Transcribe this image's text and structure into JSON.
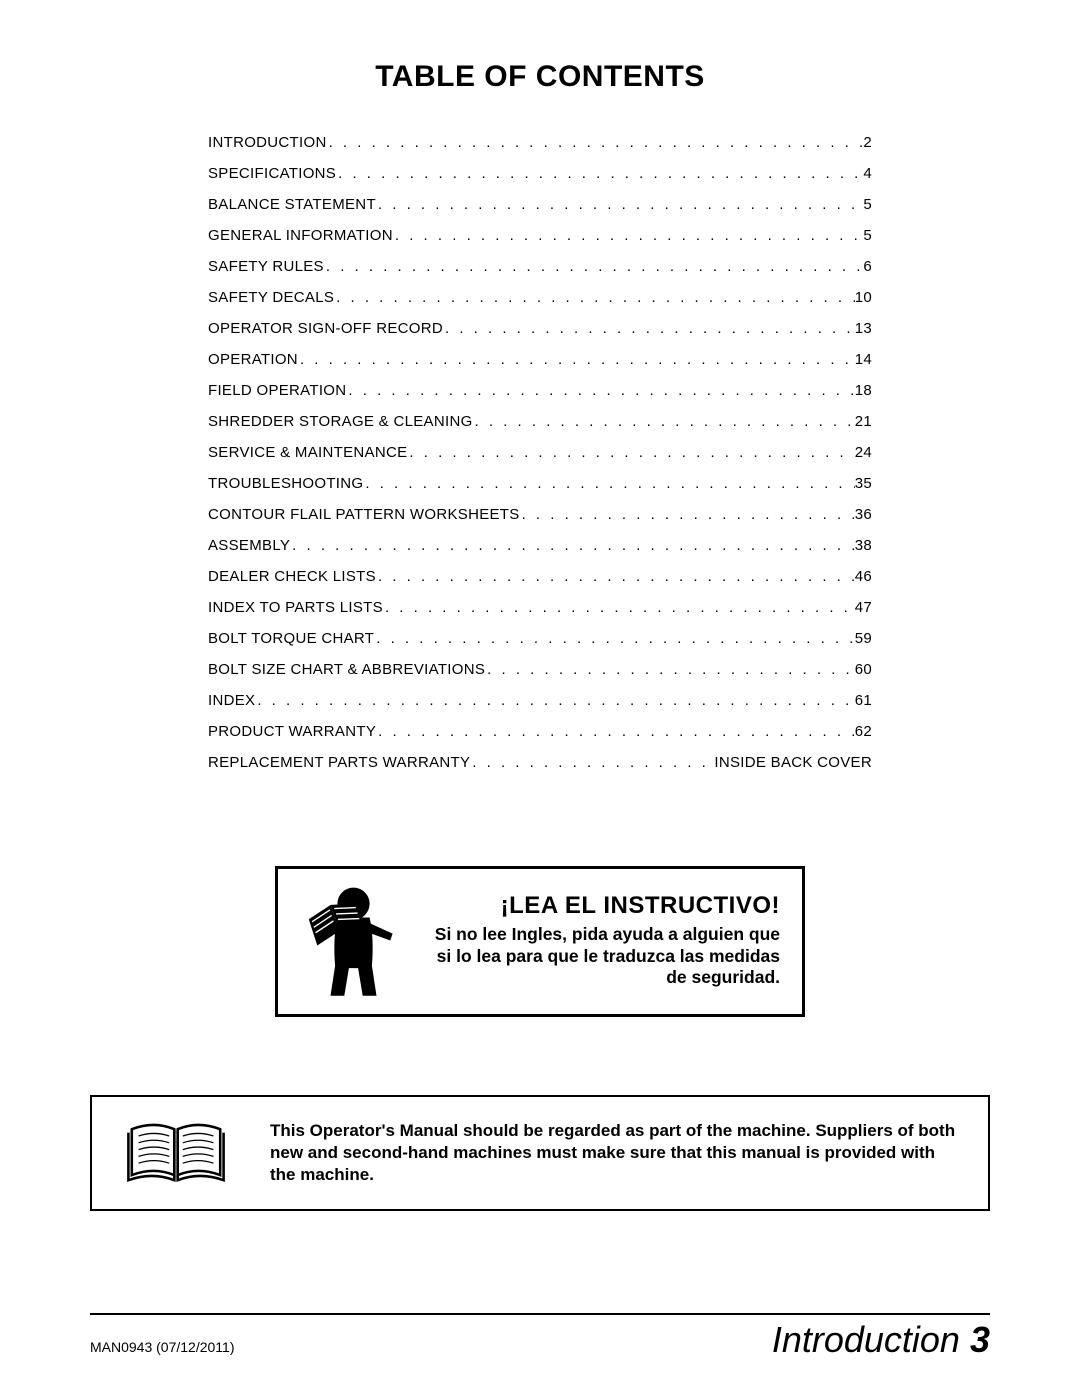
{
  "title": "TABLE OF CONTENTS",
  "toc": [
    {
      "label": "INTRODUCTION",
      "page": "2"
    },
    {
      "label": "SPECIFICATIONS",
      "page": "4"
    },
    {
      "label": "BALANCE STATEMENT",
      "page": "5"
    },
    {
      "label": "GENERAL INFORMATION",
      "page": "5"
    },
    {
      "label": "SAFETY RULES",
      "page": "6"
    },
    {
      "label": "SAFETY DECALS",
      "page": "10"
    },
    {
      "label": "OPERATOR SIGN-OFF RECORD",
      "page": "13"
    },
    {
      "label": "OPERATION",
      "page": "14"
    },
    {
      "label": "FIELD OPERATION",
      "page": "18"
    },
    {
      "label": "SHREDDER STORAGE & CLEANING",
      "page": "21"
    },
    {
      "label": "SERVICE & MAINTENANCE",
      "page": "24"
    },
    {
      "label": "TROUBLESHOOTING",
      "page": "35"
    },
    {
      "label": "CONTOUR FLAIL PATTERN WORKSHEETS",
      "page": "36"
    },
    {
      "label": "ASSEMBLY",
      "page": "38"
    },
    {
      "label": "DEALER CHECK LISTS",
      "page": "46"
    },
    {
      "label": "INDEX TO PARTS LISTS",
      "page": "47"
    },
    {
      "label": "BOLT TORQUE CHART",
      "page": "59"
    },
    {
      "label": "BOLT SIZE CHART & ABBREVIATIONS",
      "page": "60"
    },
    {
      "label": "INDEX",
      "page": "61"
    },
    {
      "label": "PRODUCT WARRANTY",
      "page": "62"
    },
    {
      "label": "REPLACEMENT PARTS WARRANTY",
      "page": " INSIDE BACK COVER"
    }
  ],
  "callout1": {
    "title": "¡LEA EL INSTRUCTIVO!",
    "body": "Si no lee Ingles, pida ayuda a alguien que si lo lea para que le traduzca las medidas de seguridad."
  },
  "callout2": {
    "body": "This Operator's Manual should be regarded as part of the machine. Suppliers of both new and second-hand machines must make sure that this manual is provided with the machine."
  },
  "footer": {
    "left": "MAN0943 (07/12/2011)",
    "section": "Introduction",
    "pagenum": "3"
  },
  "colors": {
    "text": "#000000",
    "background": "#ffffff",
    "border": "#000000"
  },
  "typography": {
    "title_fontsize": 30,
    "toc_fontsize": 15,
    "callout1_title_fontsize": 24,
    "callout1_body_fontsize": 17.5,
    "callout2_body_fontsize": 17,
    "footer_left_fontsize": 14,
    "footer_right_fontsize": 36
  }
}
